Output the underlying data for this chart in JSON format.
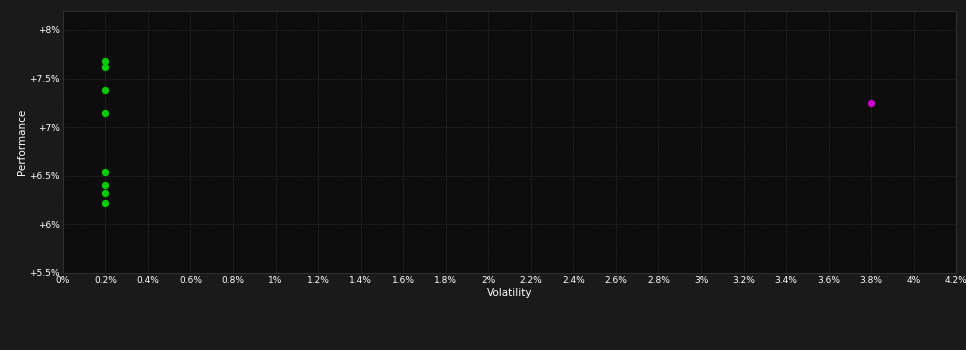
{
  "xlabel": "Volatility",
  "ylabel": "Performance",
  "background_color": "#1a1a1a",
  "plot_bg_color": "#0d0d0d",
  "grid_color": "#3a3a3a",
  "text_color": "#ffffff",
  "xlim": [
    0.0,
    0.042
  ],
  "ylim": [
    0.055,
    0.082
  ],
  "xtick_vals": [
    0.0,
    0.002,
    0.004,
    0.006,
    0.008,
    0.01,
    0.012,
    0.014,
    0.016,
    0.018,
    0.02,
    0.022,
    0.024,
    0.026,
    0.028,
    0.03,
    0.032,
    0.034,
    0.036,
    0.038,
    0.04,
    0.042
  ],
  "ytick_vals": [
    0.055,
    0.06,
    0.065,
    0.07,
    0.075,
    0.08
  ],
  "ytick_labels": [
    "+5.5%",
    "+6%",
    "+6.5%",
    "+7%",
    "+7.5%",
    "+8%"
  ],
  "xtick_labels": [
    "0%",
    "0.2%",
    "0.4%",
    "0.6%",
    "0.8%",
    "1%",
    "1.2%",
    "1.4%",
    "1.6%",
    "1.8%",
    "2%",
    "2.2%",
    "2.4%",
    "2.6%",
    "2.8%",
    "3%",
    "3.2%",
    "3.4%",
    "3.6%",
    "3.8%",
    "4%",
    "4.2%"
  ],
  "green_points": [
    [
      0.002,
      0.0768
    ],
    [
      0.002,
      0.0762
    ],
    [
      0.002,
      0.0738
    ],
    [
      0.002,
      0.0715
    ],
    [
      0.002,
      0.0654
    ],
    [
      0.002,
      0.0641
    ],
    [
      0.002,
      0.0632
    ],
    [
      0.002,
      0.0622
    ]
  ],
  "magenta_points": [
    [
      0.038,
      0.0725
    ]
  ],
  "green_color": "#00cc00",
  "magenta_color": "#cc00cc",
  "marker_size": 28,
  "figsize": [
    9.66,
    3.5
  ],
  "dpi": 100
}
